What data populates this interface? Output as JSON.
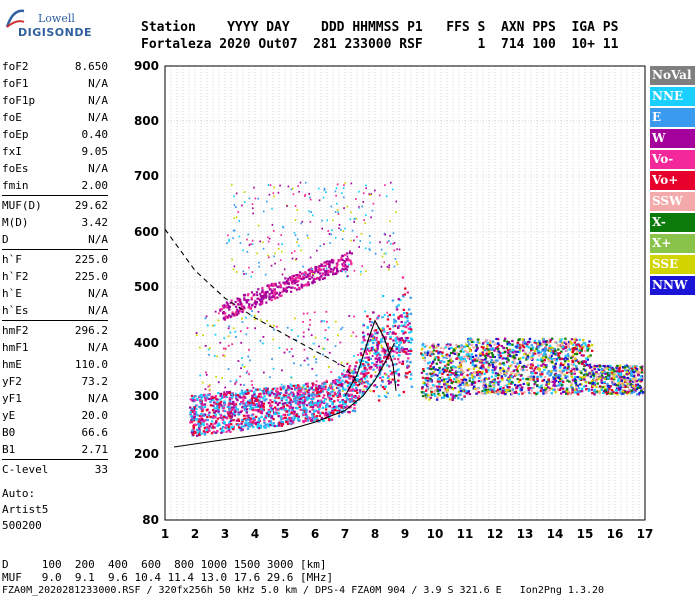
{
  "logo": {
    "line1": "Lowell",
    "line2": "DIGISONDE"
  },
  "header": {
    "labels": "Station    YYYY DAY    DDD HHMMSS P1   FFS S  AXN PPS  IGA PS",
    "values": "Fortaleza 2020 Out07  281 233000 RSF       1  714 100  10+ 11"
  },
  "params": [
    {
      "k": "foF2",
      "v": "8.650"
    },
    {
      "k": "foF1",
      "v": "N/A"
    },
    {
      "k": "foF1p",
      "v": "N/A"
    },
    {
      "k": "foE",
      "v": "N/A"
    },
    {
      "k": "foEp",
      "v": "0.40"
    },
    {
      "k": "fxI",
      "v": "9.05"
    },
    {
      "k": "foEs",
      "v": "N/A"
    },
    {
      "k": "fmin",
      "v": "2.00"
    },
    {
      "k": "MUF(D)",
      "v": "29.62"
    },
    {
      "k": "M(D)",
      "v": "3.42"
    },
    {
      "k": "D",
      "v": "N/A"
    },
    {
      "k": "h`F",
      "v": "225.0"
    },
    {
      "k": "h`F2",
      "v": "225.0"
    },
    {
      "k": "h`E",
      "v": "N/A"
    },
    {
      "k": "h`Es",
      "v": "N/A"
    },
    {
      "k": "hmF2",
      "v": "296.2"
    },
    {
      "k": "hmF1",
      "v": "N/A"
    },
    {
      "k": "hmE",
      "v": "110.0"
    },
    {
      "k": "yF2",
      "v": "73.2"
    },
    {
      "k": "yF1",
      "v": "N/A"
    },
    {
      "k": "yE",
      "v": "20.0"
    },
    {
      "k": "B0",
      "v": "66.6"
    },
    {
      "k": "B1",
      "v": "2.71"
    },
    {
      "k": "C-level",
      "v": "33"
    }
  ],
  "extra": {
    "auto": "Auto:",
    "artist": "Artist5",
    "version": "500200"
  },
  "footer": {
    "d_row": "D     100  200  400  600  800 1000 1500 3000 [km]",
    "muf_row": "MUF   9.0  9.1  9.6 10.4 11.4 13.0 17.6 29.6 [MHz]",
    "file_row": "FZA0M_2020281233000.RSF / 320fx256h 50 kHz 5.0 km / DPS-4 FZA0M 904 / 3.9 S 321.6 E   Ion2Png 1.3.20"
  },
  "legend": [
    {
      "label": "NoVal",
      "color": "#7f7f7f"
    },
    {
      "label": "NNE",
      "color": "#19cfff"
    },
    {
      "label": "E",
      "color": "#3a9aee"
    },
    {
      "label": "W",
      "color": "#a4009c"
    },
    {
      "label": "Vo-",
      "color": "#f3289a"
    },
    {
      "label": "Vo+",
      "color": "#e8002c"
    },
    {
      "label": "SSW",
      "color": "#f4aaaa"
    },
    {
      "label": "X-",
      "color": "#0b7b0b"
    },
    {
      "label": "X+",
      "color": "#8ac34a"
    },
    {
      "label": "SSE",
      "color": "#d2d400"
    },
    {
      "label": "NNW",
      "color": "#1a14d6"
    }
  ],
  "chart_data": {
    "type": "scatter",
    "title": "",
    "xlabel": "",
    "ylabel": "",
    "xlim": [
      1,
      17
    ],
    "ylim": [
      80,
      900
    ],
    "x_ticks": [
      "1",
      "2",
      "3",
      "4",
      "5",
      "6",
      "7",
      "8",
      "9",
      "10",
      "11",
      "12",
      "13",
      "14",
      "15",
      "16",
      "17"
    ],
    "y_ticks": [
      "80",
      "200",
      "300",
      "400",
      "500",
      "600",
      "700",
      "800",
      "900"
    ],
    "y_tick_values": [
      80,
      200,
      300,
      400,
      500,
      600,
      700,
      800,
      900
    ],
    "grid": true,
    "trace_clusters": [
      {
        "name": "o-trace F2 lower",
        "x_range": [
          1.8,
          9.2
        ],
        "y_base": [
          235,
          300
        ],
        "color_mix": [
          "#3a9aee",
          "#19cfff",
          "#a4009c",
          "#f3289a",
          "#e8002c"
        ]
      },
      {
        "name": "x-trace multihop",
        "x_range": [
          2.8,
          7.2
        ],
        "y_base": [
          455,
          560
        ],
        "color_mix": [
          "#a4009c",
          "#a4009c",
          "#f3289a"
        ]
      },
      {
        "name": "spread F",
        "x_range": [
          9.5,
          16.9
        ],
        "y_base": [
          300,
          390
        ],
        "color_mix": [
          "#1a14d6",
          "#3a9aee",
          "#19cfff",
          "#a4009c",
          "#e8002c",
          "#0b7b0b",
          "#d2d400",
          "#f4aaaa"
        ]
      }
    ],
    "profile_curve": {
      "x": [
        1.3,
        3,
        4,
        5,
        6,
        7,
        7.6,
        8.0,
        8.3,
        8.65
      ],
      "y": [
        212,
        225,
        232,
        240,
        255,
        275,
        300,
        330,
        360,
        400
      ]
    },
    "cusp_curve": {
      "x": [
        7.0,
        7.4,
        7.8,
        8.0,
        8.3,
        8.6,
        8.7
      ],
      "y": [
        300,
        340,
        410,
        440,
        410,
        360,
        310
      ]
    },
    "dashed_curve": {
      "x": [
        1,
        2,
        3,
        4,
        5,
        6,
        7,
        7.5
      ],
      "y": [
        605,
        530,
        480,
        445,
        415,
        385,
        355,
        320
      ]
    }
  }
}
